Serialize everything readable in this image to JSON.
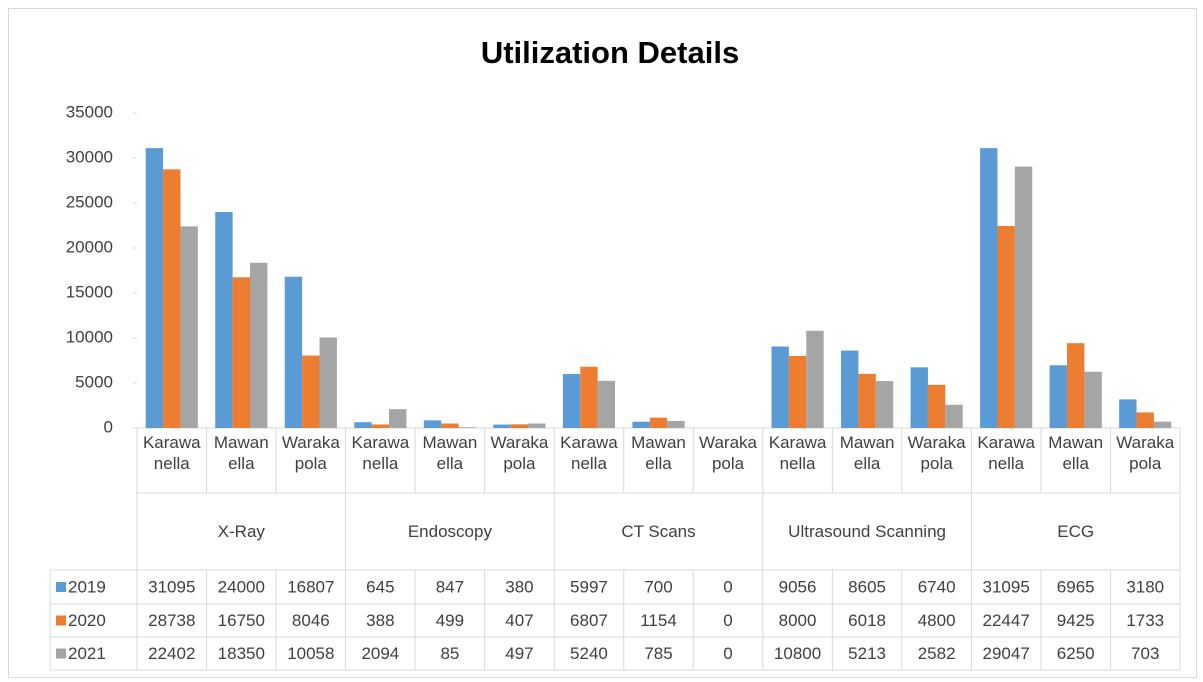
{
  "chart_data": {
    "type": "bar",
    "title": "Utilization Details",
    "groups": [
      "X-Ray",
      "Endoscopy",
      "CT Scans",
      "Ultrasound Scanning",
      "ECG"
    ],
    "categories": [
      "Karawanella",
      "Mawanella",
      "Warakapola",
      "Karawanella",
      "Mawanella",
      "Warakapola",
      "Karawanella",
      "Mawanella",
      "Warakapola",
      "Karawanella",
      "Mawanella",
      "Warakapola",
      "Karawanella",
      "Mawanella",
      "Warakapola"
    ],
    "series": [
      {
        "name": "2019",
        "color": "#5b9bd5",
        "values": [
          31095,
          24000,
          16807,
          645,
          847,
          380,
          5997,
          700,
          0,
          9056,
          8605,
          6740,
          31095,
          6965,
          3180
        ]
      },
      {
        "name": "2020",
        "color": "#ed7d31",
        "values": [
          28738,
          16750,
          8046,
          388,
          499,
          407,
          6807,
          1154,
          0,
          8000,
          6018,
          4800,
          22447,
          9425,
          1733
        ]
      },
      {
        "name": "2021",
        "color": "#a5a5a5",
        "values": [
          22402,
          18350,
          10058,
          2094,
          85,
          497,
          5240,
          785,
          0,
          10800,
          5213,
          2582,
          29047,
          6250,
          703
        ]
      }
    ],
    "ylim": [
      0,
      35000
    ],
    "yticks": [
      0,
      5000,
      10000,
      15000,
      20000,
      25000,
      30000,
      35000
    ]
  }
}
